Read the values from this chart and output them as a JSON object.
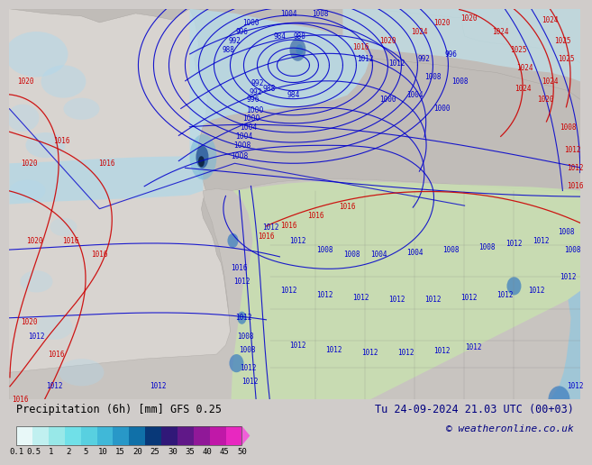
{
  "legend_title": "Precipitation (6h) [mm] GFS 0.25",
  "date_text": "Tu 24-09-2024 21.03 UTC (00+03)",
  "copyright": "© weatheronline.co.uk",
  "ocean_color": "#dcdad8",
  "land_color": "#b8b4b0",
  "precip_light_cyan": "#c0e8f0",
  "precip_mid_cyan": "#90d0e8",
  "precip_dark_blue": "#1040a0",
  "precip_intense": "#082040",
  "blue_isobar": "#0000cc",
  "red_isobar": "#cc0000",
  "bottom_bg": "#d0ccca",
  "colorbar_colors": [
    "#e8f8f8",
    "#c0f0f0",
    "#98e8e8",
    "#70e0e8",
    "#58d0e0",
    "#40b8d8",
    "#2898c8",
    "#1070a8",
    "#083878",
    "#301878",
    "#601888",
    "#901898",
    "#c018a8",
    "#e828c0",
    "#f060d8"
  ],
  "colorbar_labels": [
    "0.1",
    "0.5",
    "1",
    "2",
    "5",
    "10",
    "15",
    "20",
    "25",
    "30",
    "35",
    "40",
    "45",
    "50"
  ],
  "fs_isobar": 5.5,
  "fs_label": 8.5,
  "fs_copy": 8.0
}
